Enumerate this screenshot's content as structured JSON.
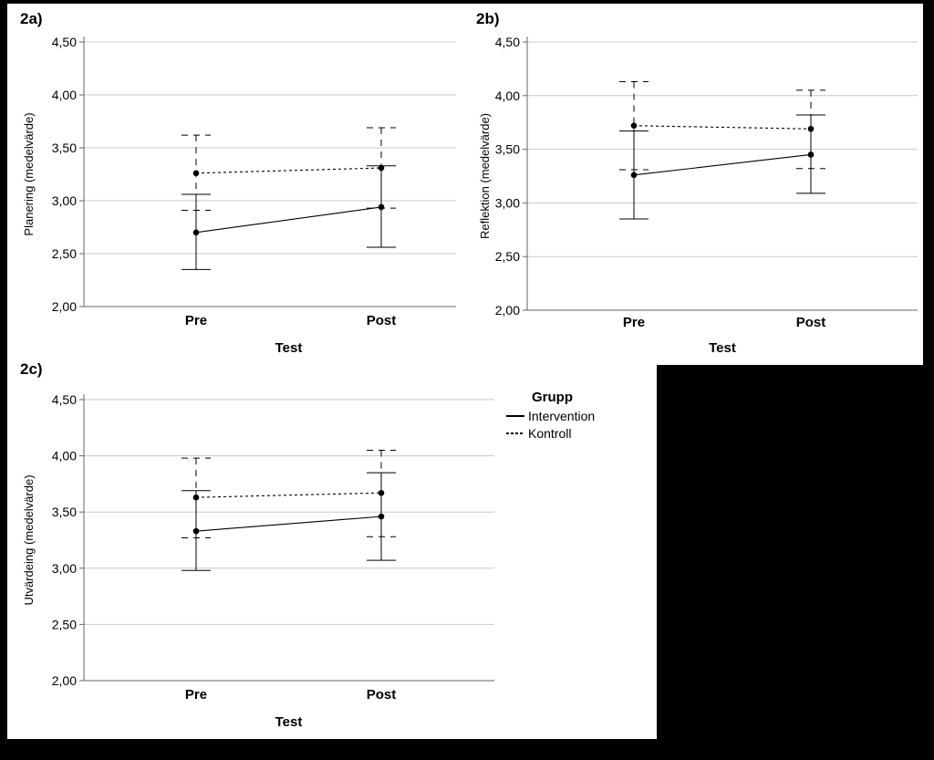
{
  "colors": {
    "background": "#000000",
    "panel": "#ffffff",
    "grid": "#c8c8c8",
    "series": "#000000"
  },
  "legend": {
    "title": "Grupp",
    "entries": [
      {
        "name": "Intervention",
        "style": "solid"
      },
      {
        "name": "Kontroll",
        "style": "dashed"
      }
    ]
  },
  "chart_data": [
    {
      "panel": "2a)",
      "type": "line",
      "xlabel": "Test",
      "ylabel": "Planering (medelvärde)",
      "categories": [
        "Pre",
        "Post"
      ],
      "ylim": [
        2.0,
        4.5
      ],
      "yticks": [
        "2,00",
        "2,50",
        "3,00",
        "3,50",
        "4,00",
        "4,50"
      ],
      "grid": true,
      "series": [
        {
          "name": "Intervention",
          "values": [
            2.7,
            2.94
          ],
          "ci_low": [
            2.35,
            2.56
          ],
          "ci_high": [
            3.06,
            3.33
          ]
        },
        {
          "name": "Kontroll",
          "values": [
            3.26,
            3.31
          ],
          "ci_low": [
            2.91,
            2.93
          ],
          "ci_high": [
            3.62,
            3.69
          ]
        }
      ]
    },
    {
      "panel": "2b)",
      "type": "line",
      "xlabel": "Test",
      "ylabel": "Reflektion (medelvärde)",
      "categories": [
        "Pre",
        "Post"
      ],
      "ylim": [
        2.0,
        4.5
      ],
      "yticks": [
        "2,00",
        "2,50",
        "3,00",
        "3,50",
        "4,00",
        "4,50"
      ],
      "grid": true,
      "series": [
        {
          "name": "Intervention",
          "values": [
            3.26,
            3.45
          ],
          "ci_low": [
            2.85,
            3.09
          ],
          "ci_high": [
            3.67,
            3.82
          ]
        },
        {
          "name": "Kontroll",
          "values": [
            3.72,
            3.69
          ],
          "ci_low": [
            3.31,
            3.32
          ],
          "ci_high": [
            4.13,
            4.05
          ]
        }
      ]
    },
    {
      "panel": "2c)",
      "type": "line",
      "xlabel": "Test",
      "ylabel": "Utvärdeing (medelvärde)",
      "categories": [
        "Pre",
        "Post"
      ],
      "ylim": [
        2.0,
        4.5
      ],
      "yticks": [
        "2,00",
        "2,50",
        "3,00",
        "3,50",
        "4,00",
        "4,50"
      ],
      "grid": true,
      "series": [
        {
          "name": "Intervention",
          "values": [
            3.33,
            3.46
          ],
          "ci_low": [
            2.98,
            3.07
          ],
          "ci_high": [
            3.69,
            3.85
          ]
        },
        {
          "name": "Kontroll",
          "values": [
            3.63,
            3.67
          ],
          "ci_low": [
            3.27,
            3.28
          ],
          "ci_high": [
            3.98,
            4.05
          ]
        }
      ]
    }
  ]
}
